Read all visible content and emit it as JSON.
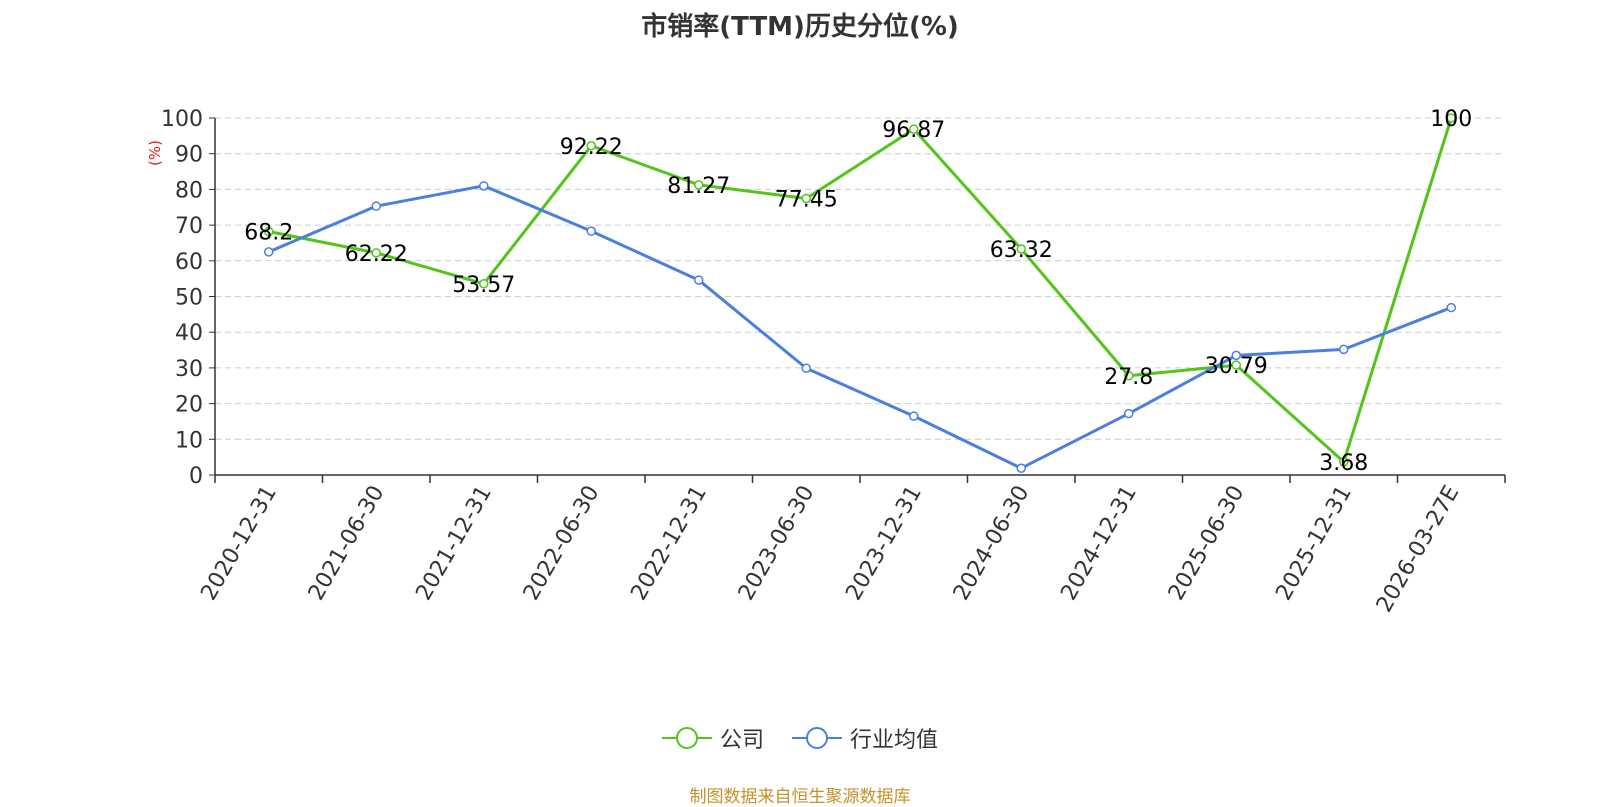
{
  "chart_data": {
    "type": "line",
    "title": "市销率(TTM)历史分位(%)",
    "ylabel": "(%)",
    "xlabel": "",
    "ylim": [
      0,
      100
    ],
    "yticks": [
      0,
      10,
      20,
      30,
      40,
      50,
      60,
      70,
      80,
      90,
      100
    ],
    "grid": true,
    "legend_position": "bottom",
    "categories": [
      "2020-12-31",
      "2021-06-30",
      "2021-12-31",
      "2022-06-30",
      "2022-12-31",
      "2023-06-30",
      "2023-12-31",
      "2024-06-30",
      "2024-12-31",
      "2025-06-30",
      "2025-12-31",
      "2026-03-27E"
    ],
    "series": [
      {
        "name": "公司",
        "color": "#52c41a",
        "values": [
          68.2,
          62.22,
          53.57,
          92.22,
          81.27,
          77.45,
          96.87,
          63.32,
          27.8,
          30.79,
          3.68,
          100
        ],
        "labels": [
          "68.2",
          "62.22",
          "53.57",
          "92.22",
          "81.27",
          "77.45",
          "96.87",
          "63.32",
          "27.8",
          "30.79",
          "3.68",
          "100"
        ]
      },
      {
        "name": "行业均值",
        "color": "#4a7fe0",
        "values": [
          62.5,
          75.3,
          81.0,
          68.3,
          54.6,
          29.9,
          16.5,
          1.9,
          17.2,
          33.5,
          35.2,
          46.9
        ]
      }
    ]
  },
  "source": "制图数据来自恒生聚源数据库"
}
